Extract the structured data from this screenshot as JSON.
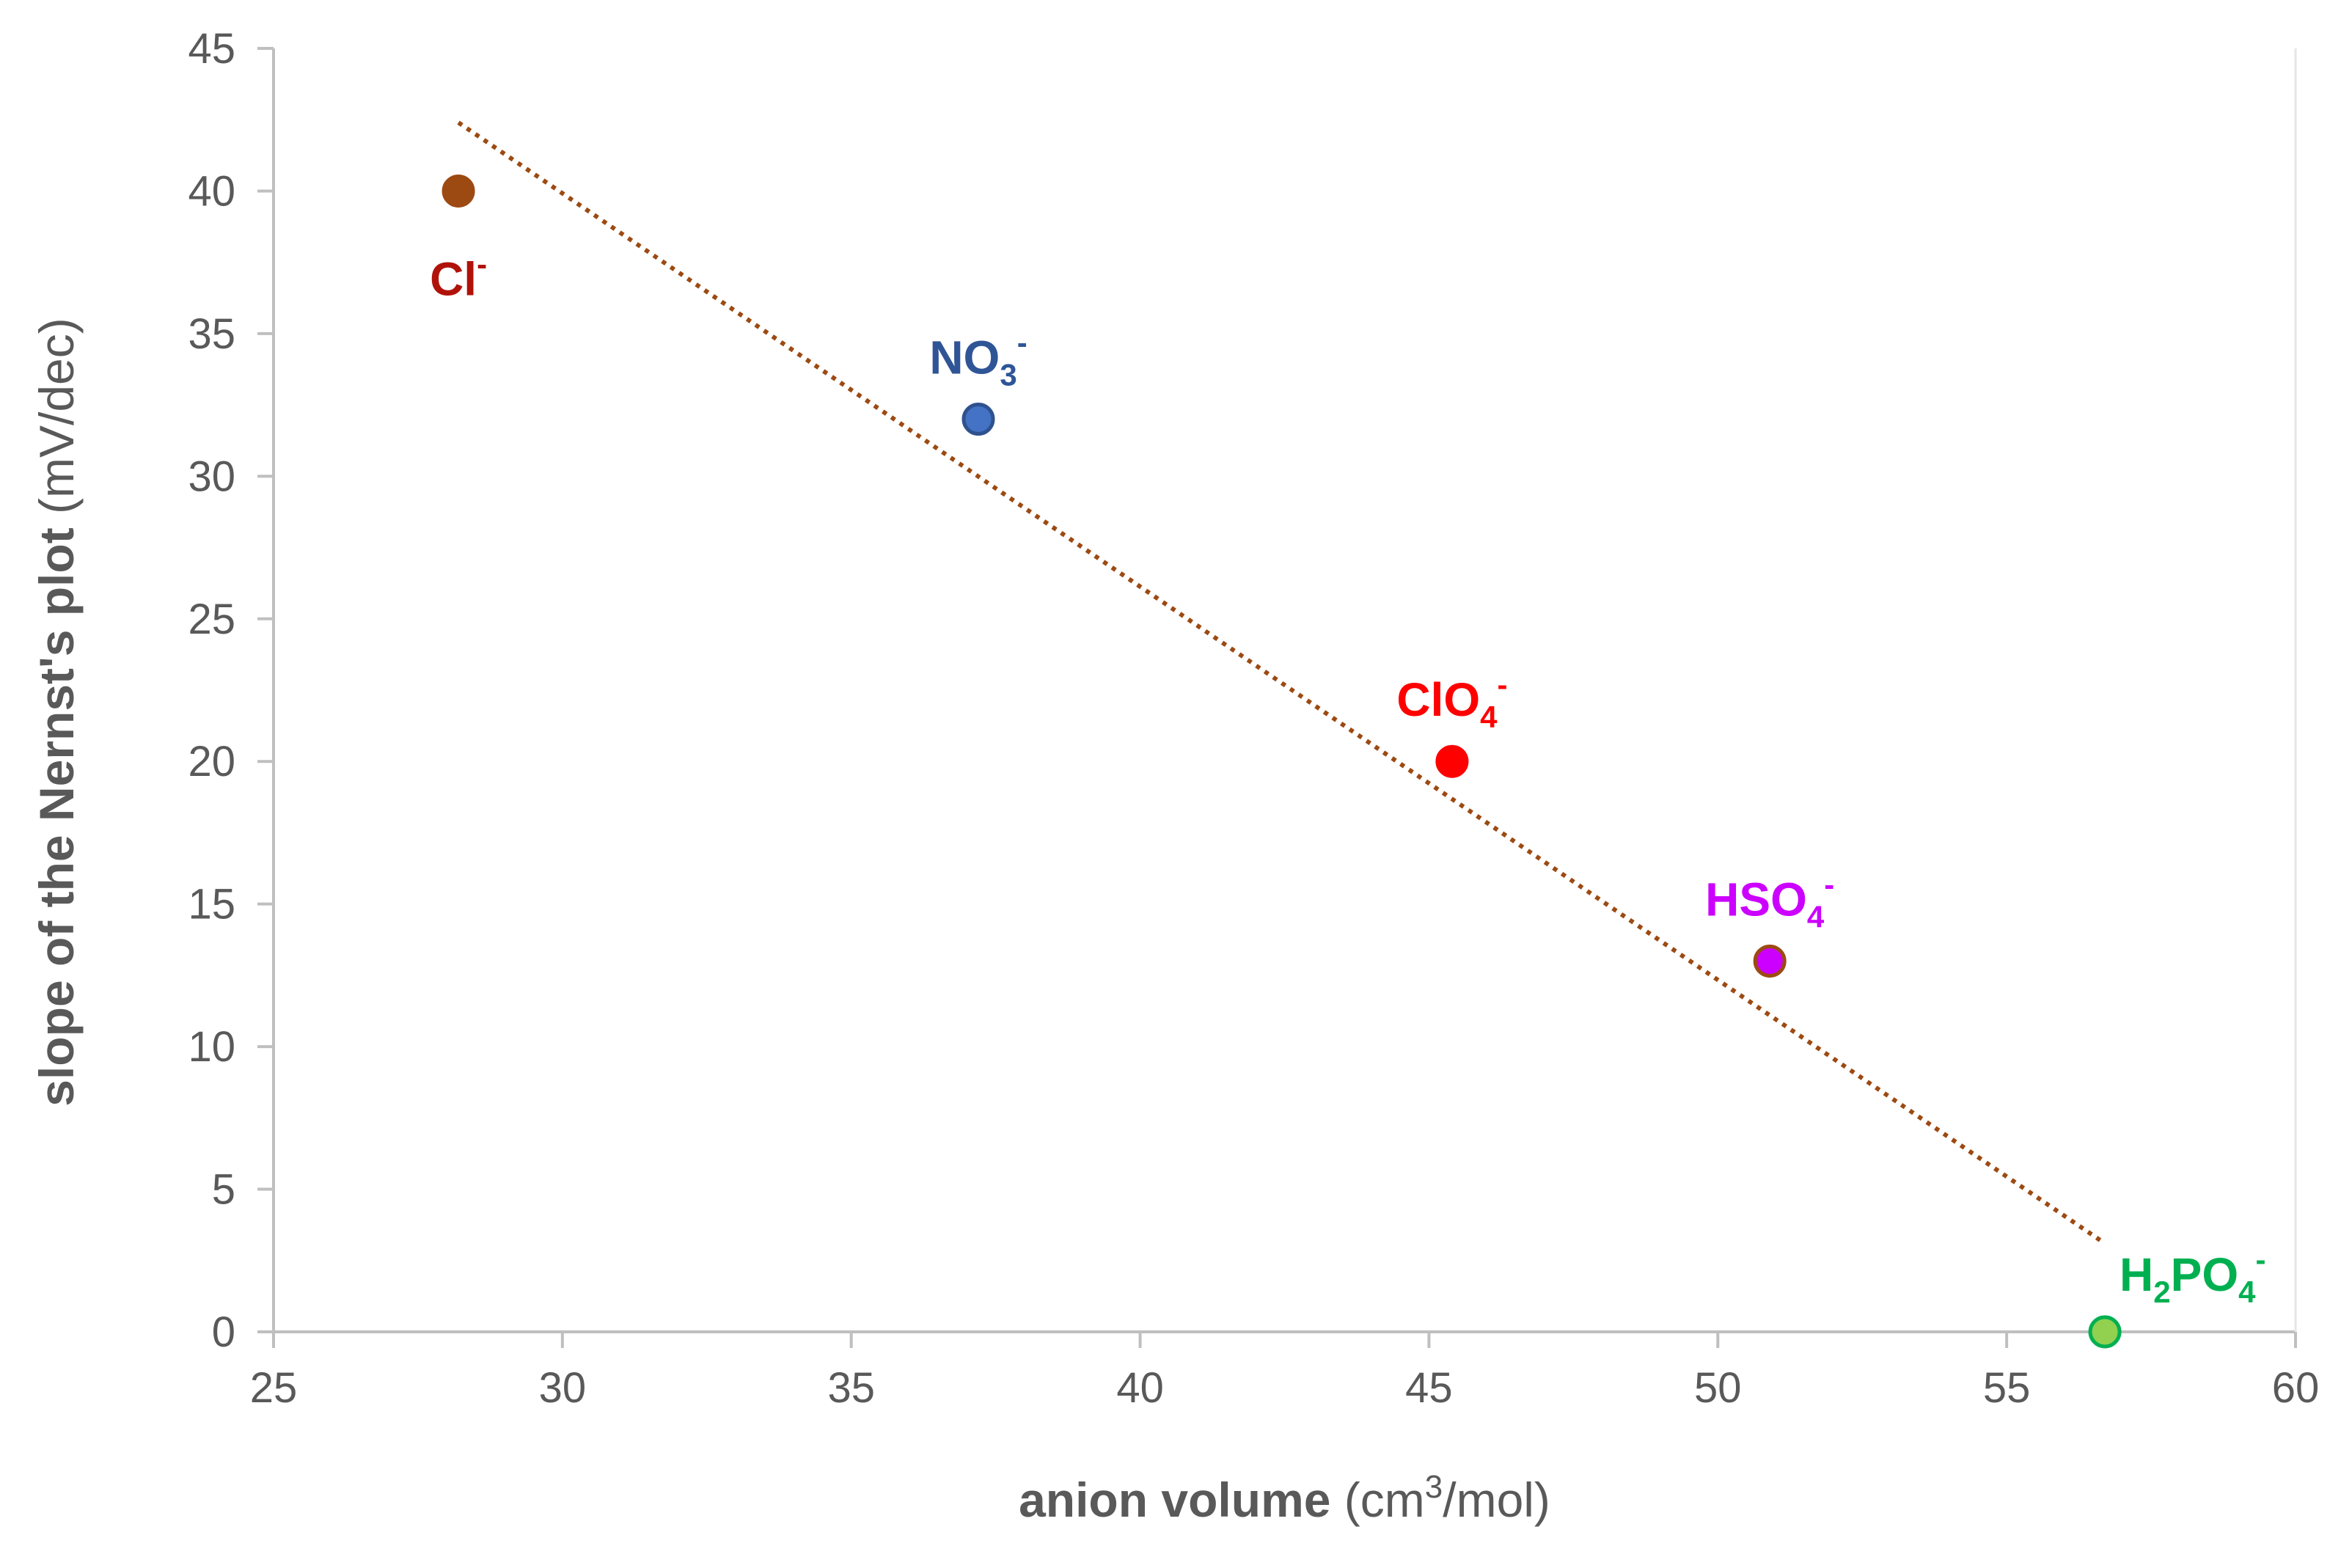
{
  "chart_data": {
    "type": "scatter",
    "xlabel": {
      "bold": "anion volume",
      "unit_pre": " (cm",
      "unit_sup": "3",
      "unit_post": "/mol)"
    },
    "ylabel": {
      "bold": "slope of the Nernst's plot",
      "unit": " (mV/dec)"
    },
    "xlim": [
      25,
      60
    ],
    "ylim": [
      0,
      45
    ],
    "xticks": [
      25,
      30,
      35,
      40,
      45,
      50,
      55,
      60
    ],
    "yticks": [
      0,
      5,
      10,
      15,
      20,
      25,
      30,
      35,
      40,
      45
    ],
    "grid": false,
    "points": [
      {
        "name": "Cl-",
        "x": 28.2,
        "y": 40,
        "color": "#9c4a12",
        "stroke": "#9c4a12",
        "label_color": "#b0120a",
        "label": [
          {
            "t": "Cl",
            "s": "n"
          },
          {
            "t": "-",
            "s": "sup"
          }
        ],
        "label_anchor": "below"
      },
      {
        "name": "NO3-",
        "x": 37.2,
        "y": 32,
        "color": "#4472c4",
        "stroke": "#2f528f",
        "label_color": "#2f5597",
        "label": [
          {
            "t": "NO",
            "s": "n"
          },
          {
            "t": "3",
            "s": "sub"
          },
          {
            "t": "-",
            "s": "sup"
          }
        ],
        "label_anchor": "above"
      },
      {
        "name": "ClO4-",
        "x": 45.4,
        "y": 20,
        "color": "#ff0000",
        "stroke": "#ff0000",
        "label_color": "#ff0000",
        "label": [
          {
            "t": "ClO",
            "s": "n"
          },
          {
            "t": "4",
            "s": "sub"
          },
          {
            "t": "-",
            "s": "sup"
          }
        ],
        "label_anchor": "above"
      },
      {
        "name": "HSO4-",
        "x": 50.9,
        "y": 13,
        "color": "#cc00ff",
        "stroke": "#9c4a12",
        "label_color": "#cc00ff",
        "label": [
          {
            "t": "HSO",
            "s": "n"
          },
          {
            "t": "4",
            "s": "sub"
          },
          {
            "t": "-",
            "s": "sup"
          }
        ],
        "label_anchor": "above"
      },
      {
        "name": "H2PO4-",
        "x": 56.7,
        "y": 0,
        "color": "#92d050",
        "stroke": "#00b050",
        "label_color": "#00b050",
        "label": [
          {
            "t": "H",
            "s": "n"
          },
          {
            "t": "2",
            "s": "sub"
          },
          {
            "t": "PO",
            "s": "n"
          },
          {
            "t": "4",
            "s": "sub"
          },
          {
            "t": "-",
            "s": "sup"
          }
        ],
        "label_anchor": "upper-right"
      }
    ],
    "trendline": {
      "type": "linear",
      "style": "dotted",
      "color": "#9c4a12",
      "x": [
        28.2,
        56.7
      ],
      "y": [
        42.4,
        3.1
      ]
    }
  }
}
